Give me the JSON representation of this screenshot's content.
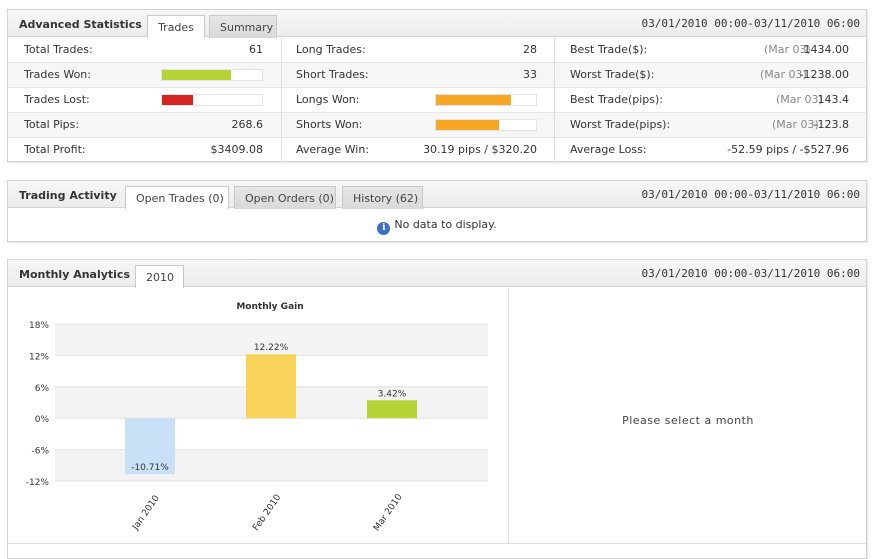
{
  "advanced": {
    "title": "Advanced Statistics",
    "tabs": [
      "Trades",
      "Summary"
    ],
    "range": "03/01/2010 00:00-03/11/2010 06:00",
    "col1": [
      {
        "label": "Total Trades:",
        "value": "61"
      },
      {
        "label": "Trades Won:",
        "bar_color": "#b5d334",
        "bar_fraction": 0.69
      },
      {
        "label": "Trades Lost:",
        "bar_color": "#d42424",
        "bar_fraction": 0.31
      },
      {
        "label": "Total Pips:",
        "value": "268.6"
      },
      {
        "label": "Total Profit:",
        "value": "$3409.08"
      }
    ],
    "col2": [
      {
        "label": "Long Trades:",
        "value": "28"
      },
      {
        "label": "Short Trades:",
        "value": "33"
      },
      {
        "label": "Longs Won:",
        "bar_color": "#f5a623",
        "bar_fraction": 0.75
      },
      {
        "label": "Shorts Won:",
        "bar_color": "#f5a623",
        "bar_fraction": 0.63
      },
      {
        "label": "Average Win:",
        "value": "30.19 pips / $320.20"
      }
    ],
    "col3": [
      {
        "label": "Best Trade($):",
        "date": "(Mar 03)",
        "value": "1434.00"
      },
      {
        "label": "Worst Trade($):",
        "date": "(Mar 03)",
        "value": "-1238.00"
      },
      {
        "label": "Best Trade(pips):",
        "date": "(Mar 03)",
        "value": "143.4"
      },
      {
        "label": "Worst Trade(pips):",
        "date": "(Mar 03)",
        "value": "-123.8"
      },
      {
        "label": "Average Loss:",
        "value": "-52.59 pips / -$527.96"
      }
    ]
  },
  "activity": {
    "title": "Trading Activity",
    "tabs": [
      "Open Trades (0)",
      "Open Orders (0)",
      "History (62)"
    ],
    "range": "03/01/2010 00:00-03/11/2010 06:00",
    "info_icon": "info-icon",
    "no_data": "No data to display."
  },
  "monthly": {
    "title": "Monthly Analytics",
    "tabs": [
      "2010"
    ],
    "range": "03/01/2010 00:00-03/11/2010 06:00",
    "select_message": "Please select a month"
  },
  "chart_data": {
    "type": "bar",
    "title": "Monthly Gain",
    "categories": [
      "Jan 2010",
      "Feb 2010",
      "Mar 2010"
    ],
    "values": [
      -10.71,
      12.22,
      3.42
    ],
    "value_labels": [
      "-10.71%",
      "12.22%",
      "3.42%"
    ],
    "colors": [
      "#c9e1f7",
      "#f7d35a",
      "#b5d334"
    ],
    "yticks": [
      -12,
      -6,
      0,
      6,
      12,
      18
    ],
    "ytick_labels": [
      "-12%",
      "-6%",
      "0%",
      "6%",
      "12%",
      "18%"
    ],
    "ylim": [
      -12,
      18
    ],
    "xlabel": "",
    "ylabel": ""
  }
}
